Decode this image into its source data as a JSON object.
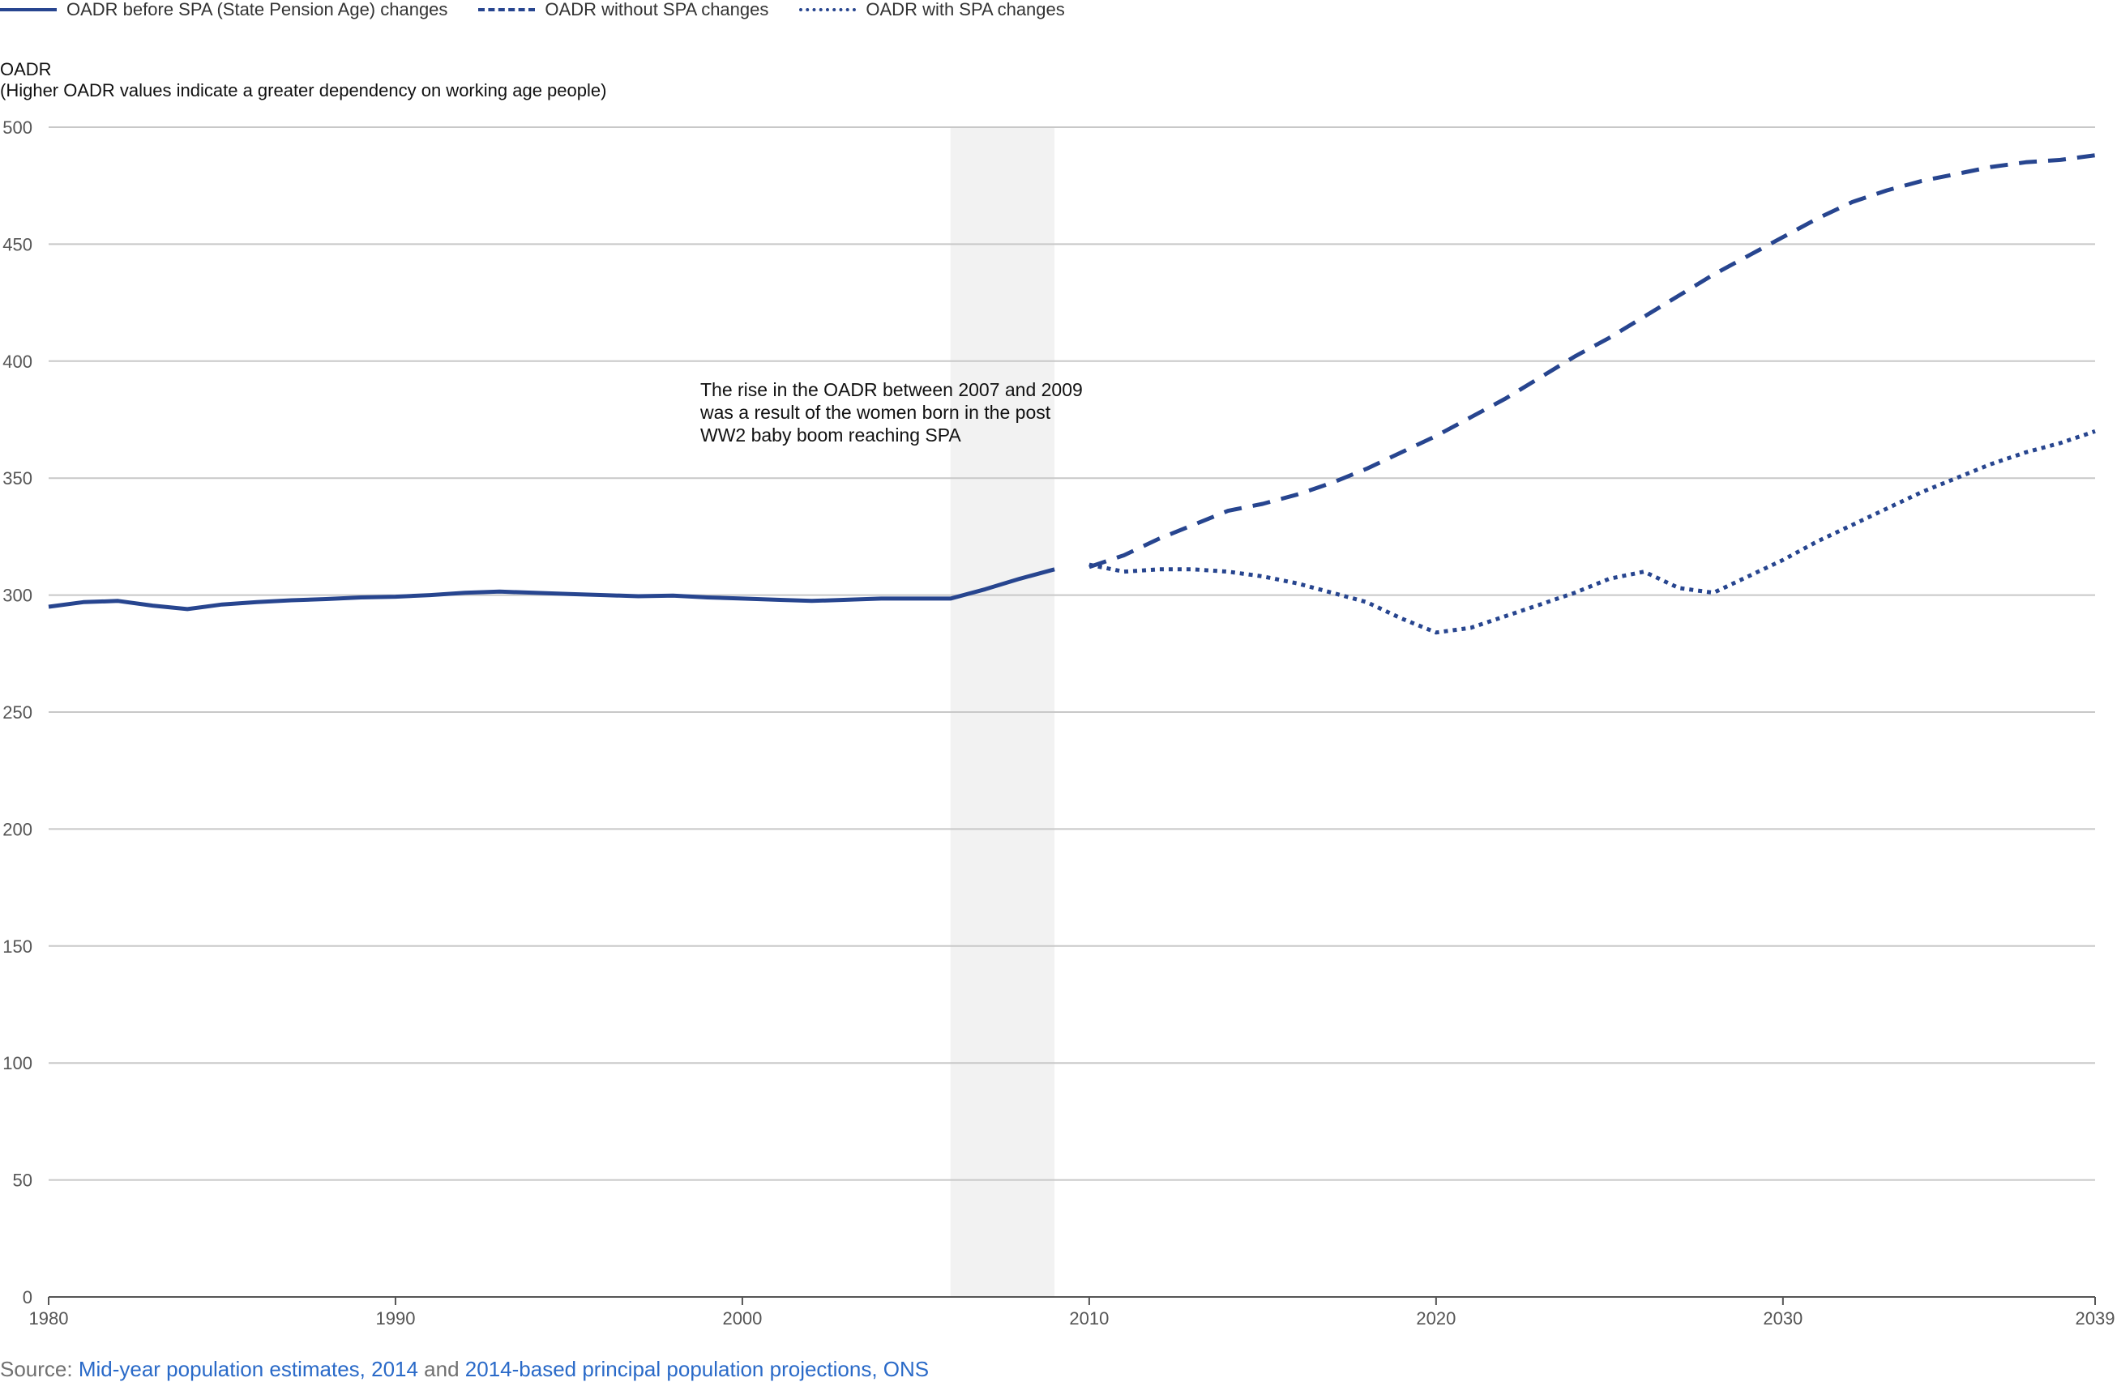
{
  "legend": {
    "before": "OADR before SPA (State Pension Age) changes",
    "without": "OADR without SPA changes",
    "with": "OADR with SPA changes"
  },
  "yaxis": {
    "title": "OADR",
    "subtitle": "(Higher OADR values indicate a greater dependency on working age people)"
  },
  "annotation": [
    "The rise in the OADR between 2007 and 2009",
    "was a result of the women born in the post",
    "WW2 baby boom reaching SPA"
  ],
  "source": {
    "prefix": "Source: ",
    "link1": "Mid-year population estimates, 2014",
    "middle": " and ",
    "link2": "2014-based principal population projections, ONS"
  },
  "colors": {
    "series": "#27458f",
    "grid": "#c8c8c8",
    "shade": "#f2f2f2",
    "axis_text": "#555555"
  },
  "chart_data": {
    "type": "line",
    "xlim": [
      1980,
      2039
    ],
    "ylim": [
      0,
      500
    ],
    "x_ticks": [
      1980,
      1990,
      2000,
      2010,
      2020,
      2030,
      2039
    ],
    "y_ticks": [
      0,
      50,
      100,
      150,
      200,
      250,
      300,
      350,
      400,
      450,
      500
    ],
    "grid": "horizontal",
    "legend_position": "top-left",
    "shaded_region": [
      2006,
      2009
    ],
    "series": [
      {
        "name": "OADR before SPA (State Pension Age) changes",
        "style": "solid",
        "x": [
          1980,
          1981,
          1982,
          1983,
          1984,
          1985,
          1986,
          1987,
          1988,
          1989,
          1990,
          1991,
          1992,
          1993,
          1994,
          1995,
          1996,
          1997,
          1998,
          1999,
          2000,
          2001,
          2002,
          2003,
          2004,
          2005,
          2006,
          2007,
          2008,
          2009
        ],
        "y": [
          295,
          297,
          297.5,
          295.5,
          294,
          296,
          297,
          297.8,
          298.3,
          299,
          299.3,
          300,
          301,
          301.5,
          301,
          300.5,
          300,
          299.5,
          299.8,
          299,
          298.5,
          298,
          297.5,
          298,
          298.5,
          298.5,
          298.5,
          302.5,
          307,
          311
        ]
      },
      {
        "name": "OADR without SPA changes",
        "style": "dashed",
        "x": [
          2010,
          2011,
          2012,
          2013,
          2014,
          2015,
          2016,
          2017,
          2018,
          2019,
          2020,
          2021,
          2022,
          2023,
          2024,
          2025,
          2026,
          2027,
          2028,
          2029,
          2030,
          2031,
          2032,
          2033,
          2034,
          2035,
          2036,
          2037,
          2038,
          2039
        ],
        "y": [
          312,
          317,
          324,
          330,
          336,
          339,
          343,
          348,
          354,
          361,
          368,
          376,
          384,
          393,
          402,
          410,
          419,
          428,
          437,
          445,
          453,
          461,
          468,
          473,
          477,
          480,
          483,
          485,
          486,
          488
        ]
      },
      {
        "name": "OADR with SPA changes",
        "style": "dotted",
        "x": [
          2010,
          2011,
          2012,
          2013,
          2014,
          2015,
          2016,
          2017,
          2018,
          2019,
          2020,
          2021,
          2022,
          2023,
          2024,
          2025,
          2026,
          2027,
          2028,
          2029,
          2030,
          2031,
          2032,
          2033,
          2034,
          2035,
          2036,
          2037,
          2038,
          2039
        ],
        "y": [
          313,
          310,
          311,
          311,
          310,
          308,
          305,
          301,
          297,
          290,
          284,
          286,
          291,
          296,
          301,
          307,
          310,
          303,
          301,
          308,
          315,
          323,
          330,
          337,
          344,
          350,
          356,
          361,
          365,
          370
        ]
      }
    ]
  }
}
